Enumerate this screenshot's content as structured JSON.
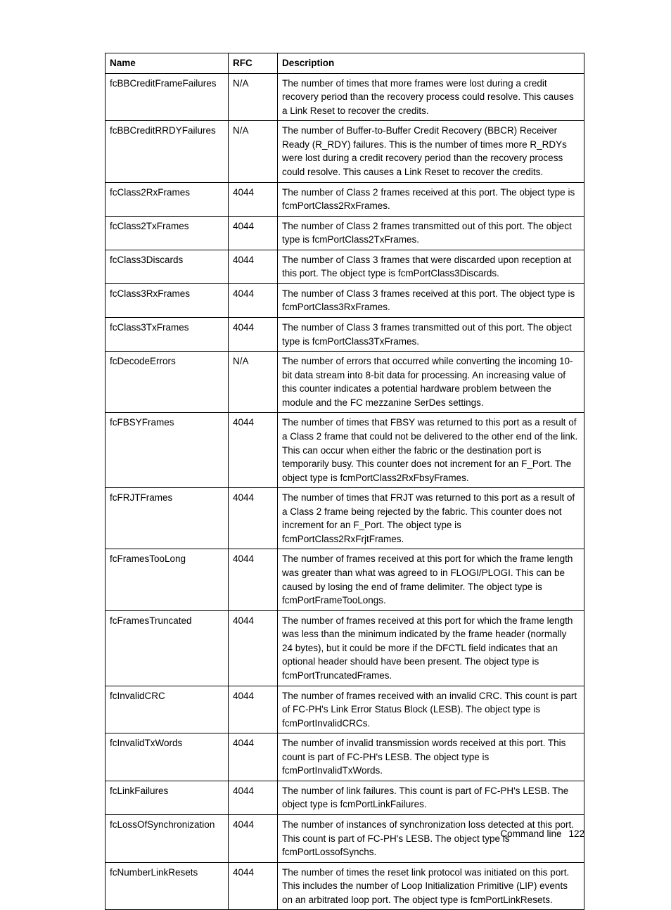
{
  "table": {
    "headers": {
      "name": "Name",
      "rfc": "RFC",
      "desc": "Description"
    },
    "rows": [
      {
        "name": "fcBBCreditFrameFailures",
        "rfc": "N/A",
        "desc": "The number of times that more frames were lost during a credit recovery period than the recovery process could resolve. This causes a Link Reset to recover the credits."
      },
      {
        "name": "fcBBCreditRRDYFailures",
        "rfc": "N/A",
        "desc": "The number of Buffer-to-Buffer Credit Recovery (BBCR) Receiver Ready (R_RDY) failures. This is the number of times more R_RDYs were lost during a credit recovery period than the recovery process could resolve. This causes a Link Reset to recover the credits."
      },
      {
        "name": "fcClass2RxFrames",
        "rfc": "4044",
        "desc": "The number of Class 2 frames received at this port. The object type is fcmPortClass2RxFrames."
      },
      {
        "name": "fcClass2TxFrames",
        "rfc": "4044",
        "desc": "The number of Class 2 frames transmitted out of this port. The object type is fcmPortClass2TxFrames."
      },
      {
        "name": "fcClass3Discards",
        "rfc": "4044",
        "desc": "The number of Class 3 frames that were discarded upon reception at this port. The object type is fcmPortClass3Discards."
      },
      {
        "name": "fcClass3RxFrames",
        "rfc": "4044",
        "desc": "The number of Class 3 frames received at this port. The object type is fcmPortClass3RxFrames."
      },
      {
        "name": "fcClass3TxFrames",
        "rfc": "4044",
        "desc": "The number of Class 3 frames transmitted out of this port. The object type is fcmPortClass3TxFrames."
      },
      {
        "name": "fcDecodeErrors",
        "rfc": "N/A",
        "desc": "The number of errors that occurred while converting the incoming 10-bit data stream into 8-bit data for processing. An increasing value of this counter indicates a potential hardware problem between the module and the FC mezzanine SerDes settings."
      },
      {
        "name": "fcFBSYFrames",
        "rfc": "4044",
        "desc": "The number of times that FBSY was returned to this port as a result of a Class 2 frame that could not be delivered to the other end of the link. This can occur when either the fabric or the destination port is temporarily busy. This counter does not increment for an F_Port. The object type is fcmPortClass2RxFbsyFrames."
      },
      {
        "name": "fcFRJTFrames",
        "rfc": "4044",
        "desc": "The number of times that FRJT was returned to this port as a result of a Class 2 frame being rejected by the fabric. This counter does not increment for an F_Port. The object type is fcmPortClass2RxFrjtFrames."
      },
      {
        "name": "fcFramesTooLong",
        "rfc": "4044",
        "desc": "The number of frames received at this port for which the frame length was greater than what was agreed to in FLOGI/PLOGI. This can be caused by losing the end of frame delimiter. The object type is fcmPortFrameTooLongs."
      },
      {
        "name": "fcFramesTruncated",
        "rfc": "4044",
        "desc": "The number of frames received at this port for which the frame length was less than the minimum indicated by the frame header (normally 24 bytes), but it could be more if the DFCTL field indicates that an optional header should have been present. The object type is fcmPortTruncatedFrames."
      },
      {
        "name": "fcInvalidCRC",
        "rfc": "4044",
        "desc": "The number of frames received with an invalid CRC. This count is part of FC-PH's Link Error Status Block (LESB). The object type is fcmPortInvalidCRCs."
      },
      {
        "name": "fcInvalidTxWords",
        "rfc": "4044",
        "desc": "The number of invalid transmission words received at this port. This count is part of FC-PH's LESB. The object type is fcmPortInvalidTxWords."
      },
      {
        "name": "fcLinkFailures",
        "rfc": "4044",
        "desc": "The number of link failures. This count is part of FC-PH's LESB. The object type is fcmPortLinkFailures."
      },
      {
        "name": "fcLossOfSynchronization",
        "rfc": "4044",
        "desc": "The number of instances of synchronization loss detected at this port. This count is part of FC-PH's LESB. The object type is fcmPortLossofSynchs."
      },
      {
        "name": "fcNumberLinkResets",
        "rfc": "4044",
        "desc": "The number of times the reset link protocol was initiated on this port. This includes the number of Loop Initialization Primitive (LIP) events on an arbitrated loop port. The object type is fcmPortLinkResets."
      }
    ]
  },
  "footer": {
    "section": "Command line",
    "page": "122"
  }
}
